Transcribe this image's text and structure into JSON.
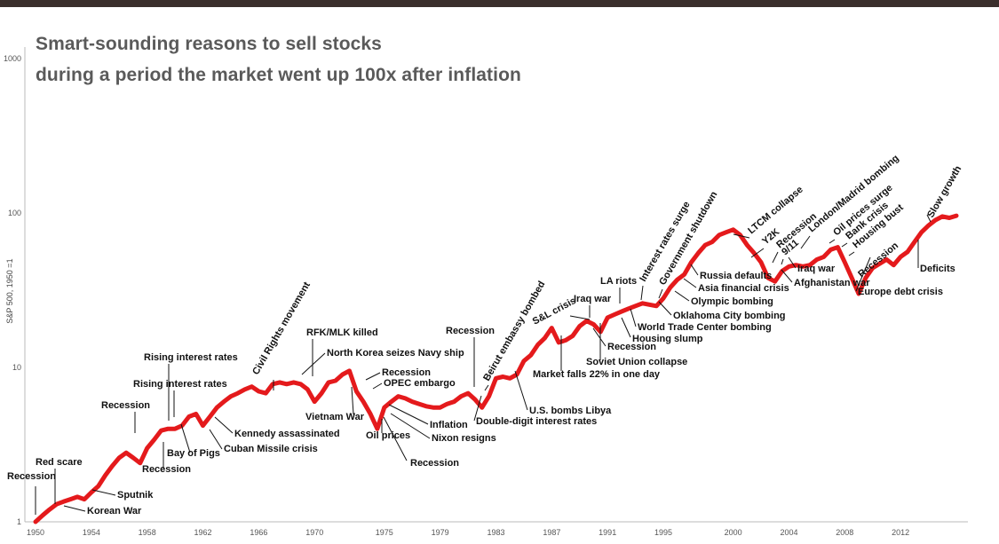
{
  "chart_data": {
    "type": "line",
    "title": "Smart-sounding reasons to sell stocks",
    "subtitle": "during a period the market went up 100x after inflation",
    "ylabel": "S&P 500, 1950 =1",
    "xlabel": "",
    "y_scale": "log",
    "ylim": [
      1,
      1000
    ],
    "xlim": [
      1950,
      2016
    ],
    "y_ticks": [
      "1",
      "10",
      "100",
      "1000"
    ],
    "x_ticks": [
      "1950",
      "1954",
      "1958",
      "1962",
      "1966",
      "1970",
      "1975",
      "1979",
      "1983",
      "1987",
      "1991",
      "1995",
      "2000",
      "2004",
      "2008",
      "2012"
    ],
    "grid": false,
    "legend": "none",
    "series_color": "#e41a1c",
    "series": [
      {
        "x": [
          1950.0,
          1950.5,
          1951.0,
          1951.5,
          1952.0,
          1952.5,
          1953.0,
          1953.5,
          1954.0,
          1954.5,
          1955.0,
          1955.5,
          1956.0,
          1956.5,
          1957.0,
          1957.5,
          1958.0,
          1958.5,
          1959.0,
          1959.5,
          1960.0,
          1960.5,
          1961.0,
          1961.5,
          1962.0,
          1962.5,
          1963.0,
          1963.5,
          1964.0,
          1964.5,
          1965.0,
          1965.5,
          1966.0,
          1966.5,
          1967.0,
          1967.5,
          1968.0,
          1968.5,
          1969.0,
          1969.5,
          1970.0,
          1970.5,
          1971.0,
          1971.5,
          1972.0,
          1972.5,
          1973.0,
          1973.5,
          1974.0,
          1974.5,
          1975.0,
          1975.5,
          1976.0,
          1976.5,
          1977.0,
          1977.5,
          1978.0,
          1978.5,
          1979.0,
          1979.5,
          1980.0,
          1980.5,
          1981.0,
          1981.5,
          1982.0,
          1982.5,
          1983.0,
          1983.5,
          1984.0,
          1984.5,
          1985.0,
          1985.5,
          1986.0,
          1986.5,
          1987.0,
          1987.5,
          1988.0,
          1988.5,
          1989.0,
          1989.5,
          1990.0,
          1990.5,
          1991.0,
          1991.5,
          1992.0,
          1992.5,
          1993.0,
          1993.5,
          1994.0,
          1994.5,
          1995.0,
          1995.5,
          1996.0,
          1996.5,
          1997.0,
          1997.5,
          1998.0,
          1998.5,
          1999.0,
          1999.5,
          2000.0,
          2000.5,
          2001.0,
          2001.5,
          2002.0,
          2002.5,
          2003.0,
          2003.5,
          2004.0,
          2004.5,
          2005.0,
          2005.5,
          2006.0,
          2006.5,
          2007.0,
          2007.5,
          2008.0,
          2008.5,
          2009.0,
          2009.5,
          2010.0,
          2010.5,
          2011.0,
          2011.5,
          2012.0,
          2012.5,
          2013.0,
          2013.5,
          2014.0,
          2014.5,
          2015.0,
          2015.5,
          2016.0
        ],
        "values": [
          1.0,
          1.1,
          1.2,
          1.3,
          1.35,
          1.4,
          1.45,
          1.4,
          1.55,
          1.7,
          2.0,
          2.3,
          2.6,
          2.8,
          2.6,
          2.4,
          3.0,
          3.4,
          3.9,
          4.0,
          4.0,
          4.2,
          4.8,
          5.0,
          4.2,
          4.8,
          5.5,
          6.0,
          6.5,
          6.8,
          7.2,
          7.5,
          7.0,
          6.8,
          7.8,
          8.0,
          7.8,
          8.0,
          7.8,
          7.2,
          6.0,
          6.8,
          8.0,
          8.2,
          9.0,
          9.5,
          7.0,
          6.0,
          5.0,
          4.0,
          5.5,
          6.0,
          6.5,
          6.3,
          6.0,
          5.8,
          5.6,
          5.5,
          5.5,
          5.8,
          6.0,
          6.5,
          6.8,
          6.2,
          5.5,
          6.5,
          8.5,
          8.7,
          8.5,
          9.0,
          11.0,
          12.0,
          14.0,
          15.5,
          18.0,
          14.5,
          15.0,
          16.0,
          18.5,
          20.0,
          19.0,
          17.0,
          21.0,
          22.0,
          23.0,
          24.0,
          25.0,
          26.0,
          25.5,
          25.0,
          28.0,
          33.0,
          37.0,
          40.0,
          48.0,
          55.0,
          62.0,
          65.0,
          72.0,
          75.0,
          78.0,
          72.0,
          62.0,
          55.0,
          48.0,
          38.0,
          36.0,
          42.0,
          45.0,
          46.0,
          45.0,
          46.0,
          50.0,
          52.0,
          58.0,
          60.0,
          48.0,
          38.0,
          30.0,
          38.0,
          44.0,
          47.0,
          50.0,
          46.0,
          52.0,
          56.0,
          65.0,
          75.0,
          83.0,
          90.0,
          95.0,
          93.0,
          96.0
        ]
      }
    ],
    "annotations": [
      "Recession",
      "Red scare",
      "Sputnik",
      "Korean War",
      "Recession",
      "Recession",
      "Bay of Pigs",
      "Rising interest rates",
      "Rising interest rates",
      "Cuban Missile crisis",
      "Kennedy assassinated",
      "Civil Rights movement",
      "RFK/MLK killed",
      "North Korea seizes Navy ship",
      "Vietnam War",
      "Oil prices",
      "Recession",
      "OPEC embargo",
      "Inflation",
      "Nixon resigns",
      "Recession",
      "Recession",
      "Double-digit interest rates",
      "Beirut embassy bombed",
      "U.S. bombs Libya",
      "Market falls 22% in one day",
      "S&L crisis",
      "Iraq war",
      "LA riots",
      "Soviet Union collapse",
      "Recession",
      "Housing slump",
      "Interest rates surge",
      "World Trade Center bombing",
      "Government shutdown",
      "Oklahoma City bombing",
      "Olympic bombing",
      "Asia financial crisis",
      "Russia defaults",
      "LTCM collapse",
      "Y2K",
      "Recession",
      "9/11",
      "Iraq war",
      "Afghanistan war",
      "London/Madrid bombing",
      "Oil prices surge",
      "Bank crisis",
      "Housing bust",
      "Recession",
      "Europe debt crisis",
      "Slow growth",
      "Deficits"
    ]
  }
}
